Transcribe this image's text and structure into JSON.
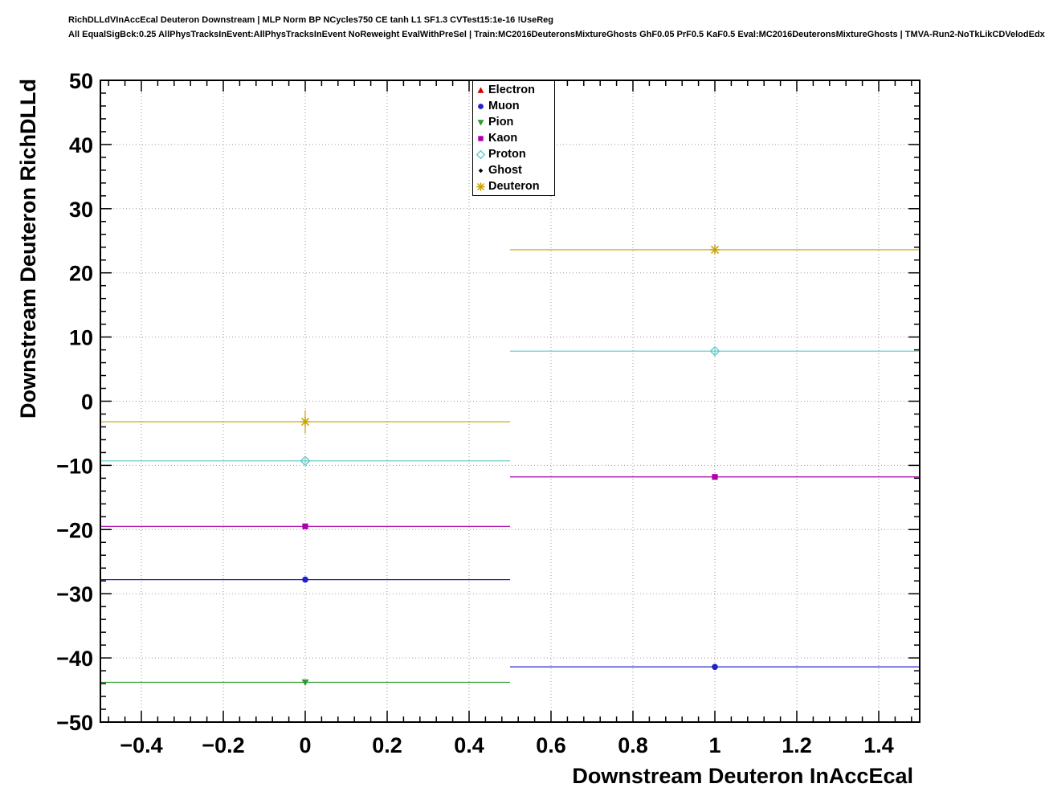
{
  "header": {
    "line1": "RichDLLdVInAccEcal Deuteron Downstream | MLP Norm BP NCycles750 CE tanh L1 SF1.3 CVTest15:1e-16 !UseReg",
    "line2": "All EqualSigBck:0.25 AllPhysTracksInEvent:AllPhysTracksInEvent NoReweight EvalWithPreSel | Train:MC2016DeuteronsMixtureGhosts GhF0.05 PrF0.5 KaF0.5 Eval:MC2016DeuteronsMixtureGhosts | TMVA-Run2-NoTkLikCDVelodEdx"
  },
  "chart_data": {
    "type": "scatter",
    "title": "",
    "xlabel": "Downstream Deuteron InAccEcal",
    "ylabel": "Downstream Deuteron RichDLLd",
    "xlim": [
      -0.5,
      1.5
    ],
    "ylim": [
      -50,
      50
    ],
    "xticks": [
      -0.4,
      -0.2,
      0,
      0.2,
      0.4,
      0.6,
      0.8,
      1,
      1.2,
      1.4
    ],
    "yticks": [
      -50,
      -40,
      -30,
      -20,
      -10,
      0,
      10,
      20,
      30,
      40,
      50
    ],
    "x_minor_step": 0.04,
    "y_minor_step": 2,
    "grid": true,
    "grid_style": "dotted",
    "legend_position": "top-center",
    "frame_color": "#000000",
    "background_color": "#ffffff",
    "series": [
      {
        "name": "Electron",
        "color": "#cc0000",
        "marker": "triangle-up",
        "points": []
      },
      {
        "name": "Muon",
        "color": "#2020cc",
        "marker": "circle",
        "points": [
          {
            "x": 0,
            "y": -27.8,
            "xerr": 0.5,
            "yerr": 0.4
          },
          {
            "x": 1,
            "y": -41.4,
            "xerr": 0.5,
            "yerr": 0.4
          }
        ]
      },
      {
        "name": "Pion",
        "color": "#2e9b2e",
        "marker": "triangle-down",
        "points": [
          {
            "x": 0,
            "y": -43.8,
            "xerr": 0.5,
            "yerr": 0.4
          }
        ]
      },
      {
        "name": "Kaon",
        "color": "#aa00aa",
        "marker": "square",
        "points": [
          {
            "x": 0,
            "y": -19.5,
            "xerr": 0.5,
            "yerr": 0.4
          },
          {
            "x": 1,
            "y": -11.8,
            "xerr": 0.5,
            "yerr": 0.4
          }
        ]
      },
      {
        "name": "Proton",
        "color": "#5fc8c8",
        "marker": "diamond-open",
        "points": [
          {
            "x": 0,
            "y": -9.3,
            "xerr": 0.5,
            "yerr": 0.4
          },
          {
            "x": 1,
            "y": 7.8,
            "xerr": 0.5,
            "yerr": 0.4
          }
        ]
      },
      {
        "name": "Ghost",
        "color": "#000000",
        "marker": "diamond-small",
        "points": []
      },
      {
        "name": "Deuteron",
        "color": "#c8a000",
        "marker": "star",
        "points": [
          {
            "x": 0,
            "y": -3.2,
            "xerr": 0.5,
            "yerr": 1.8
          },
          {
            "x": 1,
            "y": 23.6,
            "xerr": 0.5,
            "yerr": 0.4
          }
        ]
      }
    ]
  }
}
